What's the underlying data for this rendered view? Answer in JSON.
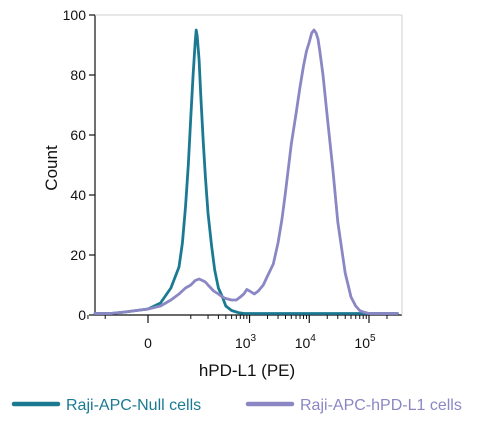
{
  "chart_data": {
    "type": "area",
    "title": "",
    "xlabel": "hPD-L1 (PE)",
    "ylabel": "Count",
    "x_scale": "biexponential",
    "xlim": [
      -300,
      300000
    ],
    "ylim": [
      0,
      100
    ],
    "grid": false,
    "legend_position": "bottom",
    "y_ticks": [
      {
        "value": 0,
        "label": "0"
      },
      {
        "value": 20,
        "label": "20"
      },
      {
        "value": 40,
        "label": "40"
      },
      {
        "value": 60,
        "label": "60"
      },
      {
        "value": 80,
        "label": "80"
      },
      {
        "value": 100,
        "label": "100"
      }
    ],
    "x_ticks": [
      {
        "value": 0,
        "base": "0",
        "exp": ""
      },
      {
        "value": 1000,
        "base": "10",
        "exp": "3"
      },
      {
        "value": 10000,
        "base": "10",
        "exp": "4"
      },
      {
        "value": 100000,
        "base": "10",
        "exp": "5"
      }
    ],
    "x_minor_ticks": [
      -200,
      -100,
      100,
      200,
      300,
      400,
      500,
      600,
      700,
      800,
      900,
      2000,
      3000,
      4000,
      5000,
      6000,
      7000,
      8000,
      9000,
      20000,
      30000,
      40000,
      50000,
      60000,
      70000,
      80000,
      90000,
      200000
    ],
    "series": [
      {
        "name": "Raji-APC-Null cells",
        "color": "#1b7a92",
        "x": [
          -300,
          -150,
          -80,
          -40,
          0,
          20,
          40,
          60,
          70,
          80,
          90,
          100,
          110,
          120,
          125,
          130,
          140,
          150,
          165,
          180,
          200,
          230,
          260,
          300,
          350,
          400,
          500,
          650,
          800,
          1000,
          2000,
          300000
        ],
        "values": [
          0.5,
          0.5,
          0.5,
          1,
          2,
          4,
          9,
          16,
          24,
          36,
          50,
          66,
          80,
          91,
          95,
          93,
          85,
          73,
          58,
          46,
          34,
          23,
          15,
          9,
          6,
          3,
          1.5,
          0.8,
          0.5,
          0.5,
          0.5,
          0.5
        ]
      },
      {
        "name": "Raji-APC-hPD-L1 cells",
        "color": "#8a87c4",
        "x": [
          -300,
          -150,
          -80,
          -40,
          0,
          20,
          40,
          60,
          80,
          100,
          120,
          140,
          160,
          180,
          200,
          250,
          300,
          350,
          400,
          500,
          600,
          700,
          800,
          900,
          1000,
          1200,
          1400,
          1700,
          2000,
          2500,
          3000,
          3500,
          4000,
          5000,
          6000,
          7000,
          8000,
          9000,
          10000,
          11000,
          12000,
          13000,
          14000,
          15000,
          17000,
          20000,
          25000,
          30000,
          40000,
          50000,
          60000,
          70000,
          80000,
          100000,
          300000
        ],
        "values": [
          0.5,
          0.5,
          0.5,
          1,
          2,
          3,
          5,
          7,
          9,
          10,
          11.5,
          12,
          11.5,
          11,
          10,
          8,
          7,
          6,
          5.5,
          5,
          5,
          6,
          7,
          8.5,
          8,
          7,
          8,
          10,
          13,
          17,
          24,
          32,
          41,
          57,
          67,
          76,
          83,
          88,
          91,
          94,
          95,
          94,
          92,
          88,
          80,
          66,
          48,
          31,
          14,
          6,
          3,
          1.5,
          1,
          0.5,
          0.5
        ]
      }
    ]
  }
}
